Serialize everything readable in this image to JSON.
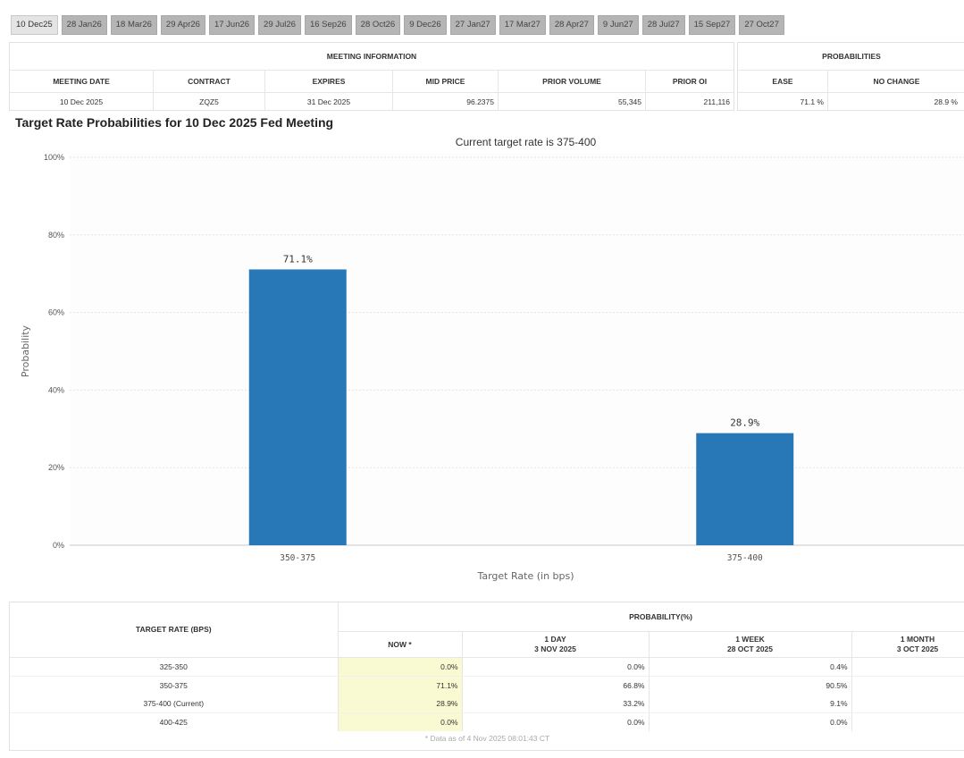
{
  "tabs": [
    "10 Dec25",
    "28 Jan26",
    "18 Mar26",
    "29 Apr26",
    "17 Jun26",
    "29 Jul26",
    "16 Sep26",
    "28 Oct26",
    "9 Dec26",
    "27 Jan27",
    "17 Mar27",
    "28 Apr27",
    "9 Jun27",
    "28 Jul27",
    "15 Sep27",
    "27 Oct27"
  ],
  "active_tab": 0,
  "meeting_info": {
    "header": "MEETING INFORMATION",
    "columns": [
      "MEETING DATE",
      "CONTRACT",
      "EXPIRES",
      "MID PRICE",
      "PRIOR VOLUME",
      "PRIOR OI"
    ],
    "row": [
      "10 Dec 2025",
      "ZQZ5",
      "31 Dec 2025",
      "96.2375",
      "55,345",
      "211,116"
    ]
  },
  "probabilities": {
    "header": "PROBABILITIES",
    "columns": [
      "EASE",
      "NO CHANGE"
    ],
    "row": [
      "71.1 %",
      "28.9 %"
    ]
  },
  "chart_title": "Target Rate Probabilities for 10 Dec 2025 Fed Meeting",
  "chart_data": {
    "type": "bar",
    "subtitle": "Current target rate is 375-400",
    "categories": [
      "350-375",
      "375-400"
    ],
    "values": [
      71.1,
      28.9
    ],
    "data_labels": [
      "71.1%",
      "28.9%"
    ],
    "xlabel": "Target Rate (in bps)",
    "ylabel": "Probability",
    "ylim": [
      0,
      100
    ],
    "yticks": [
      "0%",
      "20%",
      "40%",
      "60%",
      "80%",
      "100%"
    ],
    "grid": true,
    "bar_color": "#2878b8"
  },
  "prob_table": {
    "target_header": "TARGET RATE (BPS)",
    "prob_header": "PROBABILITY(%)",
    "columns": [
      {
        "line1": "NOW *",
        "line2": ""
      },
      {
        "line1": "1 DAY",
        "line2": "3 NOV 2025"
      },
      {
        "line1": "1 WEEK",
        "line2": "28 OCT 2025"
      },
      {
        "line1": "1 MONTH",
        "line2": "3 OCT 2025"
      }
    ],
    "rows": [
      {
        "rate": "325-350",
        "now": "0.0%",
        "day": "0.0%",
        "week": "0.4%",
        "month": ""
      },
      {
        "rate": "350-375",
        "now": "71.1%",
        "day": "66.8%",
        "week": "90.5%",
        "month": ""
      },
      {
        "rate": "375-400 (Current)",
        "now": "28.9%",
        "day": "33.2%",
        "week": "9.1%",
        "month": ""
      },
      {
        "rate": "400-425",
        "now": "0.0%",
        "day": "0.0%",
        "week": "0.0%",
        "month": ""
      }
    ],
    "footnote": "* Data as of 4 Nov 2025 08:01:43 CT"
  }
}
